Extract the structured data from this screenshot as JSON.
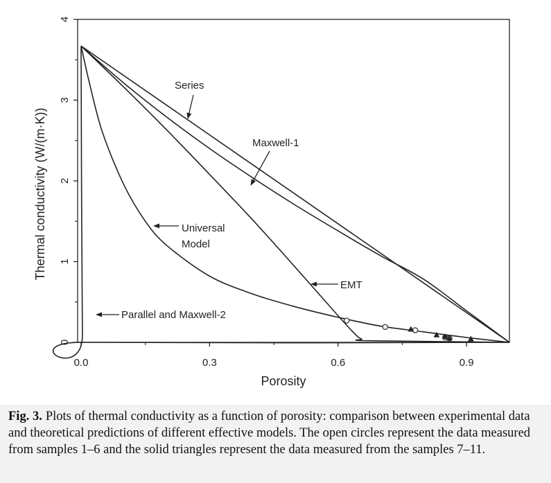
{
  "chart_data": {
    "type": "line",
    "xlabel": "Porosity",
    "ylabel": "Thermal conductivity (W/(m·K))",
    "xlim": [
      0.0,
      1.0
    ],
    "ylim": [
      0,
      4
    ],
    "x_ticks": [
      0.0,
      0.3,
      0.6,
      0.9
    ],
    "x_tick_labels": [
      "0.0",
      "0.3",
      "0.6",
      "0.9"
    ],
    "y_ticks": [
      0,
      1,
      2,
      3,
      4
    ],
    "y_tick_labels": [
      "0",
      "1",
      "2",
      "3",
      "4"
    ],
    "grid": false,
    "series": [
      {
        "name": "Series",
        "x": [
          0,
          1.0
        ],
        "y": [
          3.67,
          0.0
        ]
      },
      {
        "name": "Maxwell-1",
        "x": [
          0,
          0.1,
          0.2,
          0.3,
          0.4,
          0.5,
          0.6,
          0.7,
          0.8,
          0.9,
          1.0
        ],
        "y": [
          3.67,
          3.21,
          2.79,
          2.4,
          2.04,
          1.7,
          1.38,
          1.07,
          0.78,
          0.39,
          0.0
        ]
      },
      {
        "name": "EMT",
        "x": [
          0,
          0.1,
          0.2,
          0.3,
          0.4,
          0.5,
          0.6,
          0.64,
          0.655,
          0.67,
          1.0
        ],
        "y": [
          3.67,
          3.16,
          2.63,
          2.08,
          1.52,
          0.93,
          0.33,
          0.1,
          0.04,
          0.02,
          0.0
        ]
      },
      {
        "name": "Universal Model",
        "x": [
          0,
          0.02,
          0.05,
          0.1,
          0.15,
          0.2,
          0.3,
          0.4,
          0.5,
          0.6,
          0.7,
          0.8,
          0.9,
          1.0
        ],
        "y": [
          3.67,
          3.2,
          2.6,
          1.95,
          1.5,
          1.2,
          0.82,
          0.6,
          0.44,
          0.31,
          0.2,
          0.13,
          0.06,
          0.0
        ]
      },
      {
        "name": "Parallel and Maxwell-2",
        "x": [
          0,
          0.003,
          0.01,
          1.0
        ],
        "y": [
          3.67,
          0.1,
          0.0,
          0.0
        ]
      }
    ],
    "measured": [
      {
        "marker": "open-circle",
        "x": [
          0.62,
          0.71,
          0.78,
          0.85,
          0.86
        ],
        "y": [
          0.27,
          0.19,
          0.15,
          0.06,
          0.05
        ]
      },
      {
        "marker": "solid-triangle",
        "x": [
          0.77,
          0.83,
          0.85,
          0.86,
          0.91
        ],
        "y": [
          0.16,
          0.09,
          0.07,
          0.05,
          0.04
        ]
      }
    ],
    "annotations": [
      {
        "text": "Series",
        "arrow_to": [
          0.25,
          2.78
        ]
      },
      {
        "text": "Maxwell-1",
        "arrow_to": [
          0.4,
          1.94
        ]
      },
      {
        "text": "Universal Model",
        "arrow_to": [
          0.17,
          1.45
        ]
      },
      {
        "text": "EMT",
        "arrow_to": [
          0.54,
          0.7
        ]
      },
      {
        "text": "Parallel and Maxwell-2",
        "arrow_to": [
          0.035,
          0.35
        ]
      }
    ]
  },
  "caption": {
    "label": "Fig. 3.",
    "text": "Plots of thermal conductivity as a function of porosity: comparison between experimental data and theoretical predictions of different effective models. The open circles represent the data measured from samples 1–6 and the solid triangles represent the data measured from the samples 7–11."
  }
}
